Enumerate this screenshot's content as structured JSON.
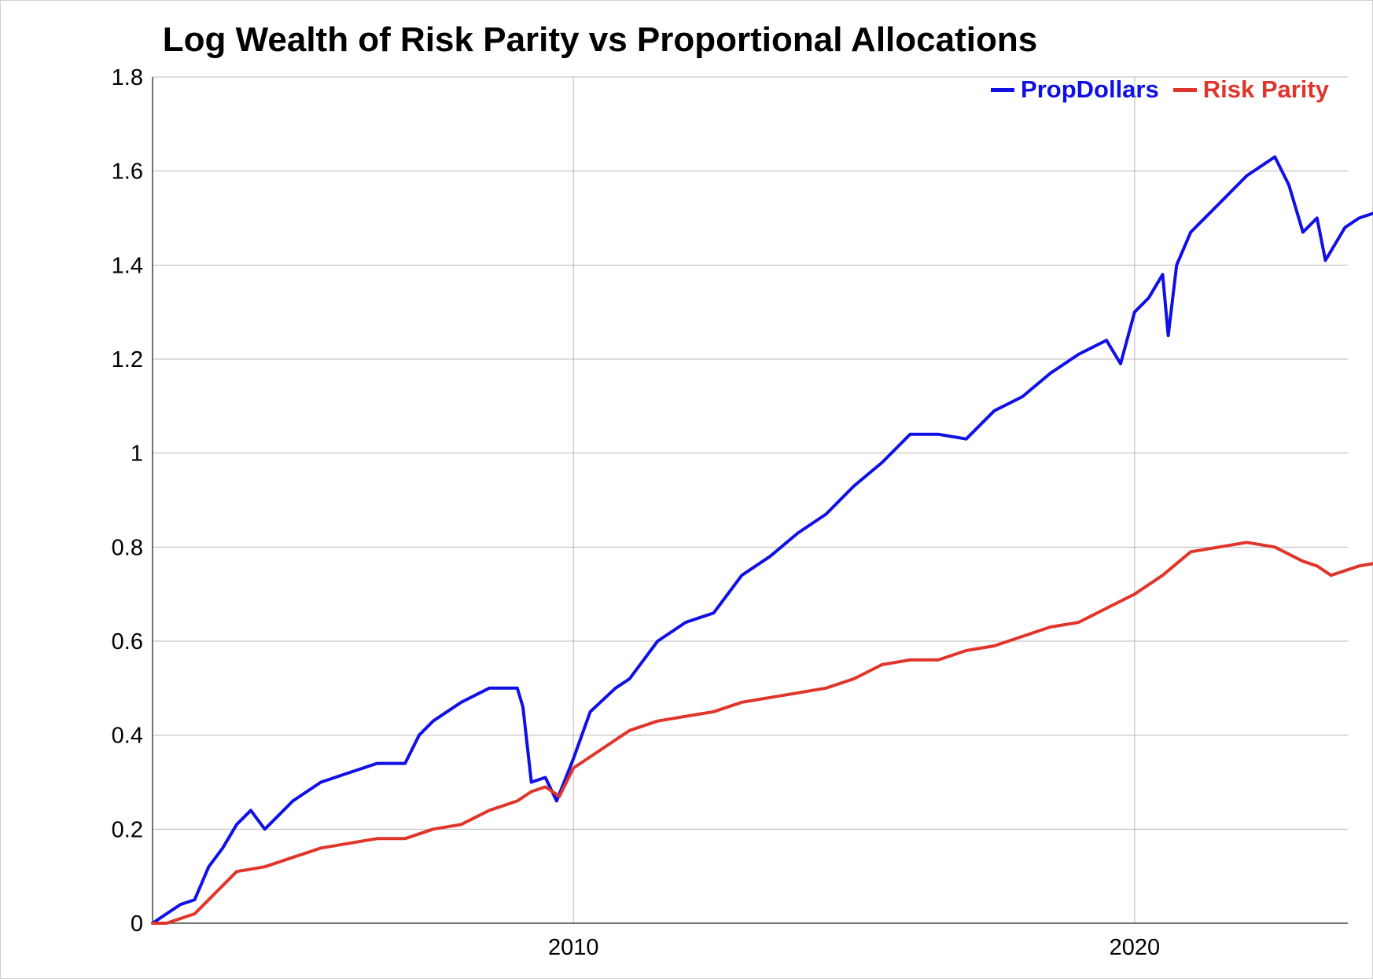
{
  "chart_data": {
    "type": "line",
    "title": "Log Wealth of Risk Parity vs Proportional Allocations",
    "xlabel": "",
    "ylabel": "",
    "xlim": [
      2002.5,
      2023.8
    ],
    "ylim": [
      0,
      1.8
    ],
    "x_ticks": [
      2010,
      2020
    ],
    "x_tick_labels": [
      "2010",
      "2020"
    ],
    "y_ticks": [
      0,
      0.2,
      0.4,
      0.6,
      0.8,
      1.0,
      1.2,
      1.4,
      1.6,
      1.8
    ],
    "y_tick_labels": [
      "0",
      "0.2",
      "0.4",
      "0.6",
      "0.8",
      "1",
      "1.2",
      "1.4",
      "1.6",
      "1.8"
    ],
    "grid": true,
    "legend_position": "top-right",
    "series": [
      {
        "name": "PropDollars",
        "color": "#1010e6",
        "points": [
          [
            2002.5,
            0.0
          ],
          [
            2002.75,
            0.02
          ],
          [
            2003.0,
            0.04
          ],
          [
            2003.25,
            0.05
          ],
          [
            2003.5,
            0.12
          ],
          [
            2003.75,
            0.16
          ],
          [
            2004.0,
            0.21
          ],
          [
            2004.25,
            0.24
          ],
          [
            2004.5,
            0.2
          ],
          [
            2004.75,
            0.23
          ],
          [
            2005.0,
            0.26
          ],
          [
            2005.5,
            0.3
          ],
          [
            2006.0,
            0.32
          ],
          [
            2006.5,
            0.34
          ],
          [
            2007.0,
            0.34
          ],
          [
            2007.25,
            0.4
          ],
          [
            2007.5,
            0.43
          ],
          [
            2008.0,
            0.47
          ],
          [
            2008.5,
            0.5
          ],
          [
            2009.0,
            0.5
          ],
          [
            2009.1,
            0.46
          ],
          [
            2009.25,
            0.3
          ],
          [
            2009.5,
            0.31
          ],
          [
            2009.7,
            0.26
          ],
          [
            2010.0,
            0.35
          ],
          [
            2010.3,
            0.45
          ],
          [
            2010.75,
            0.5
          ],
          [
            2011.0,
            0.52
          ],
          [
            2011.5,
            0.6
          ],
          [
            2012.0,
            0.64
          ],
          [
            2012.5,
            0.66
          ],
          [
            2013.0,
            0.74
          ],
          [
            2013.5,
            0.78
          ],
          [
            2014.0,
            0.83
          ],
          [
            2014.5,
            0.87
          ],
          [
            2015.0,
            0.93
          ],
          [
            2015.5,
            0.98
          ],
          [
            2016.0,
            1.04
          ],
          [
            2016.5,
            1.04
          ],
          [
            2017.0,
            1.03
          ],
          [
            2017.5,
            1.09
          ],
          [
            2018.0,
            1.12
          ],
          [
            2018.5,
            1.17
          ],
          [
            2019.0,
            1.21
          ],
          [
            2019.5,
            1.24
          ],
          [
            2019.75,
            1.19
          ],
          [
            2020.0,
            1.3
          ],
          [
            2020.25,
            1.33
          ],
          [
            2020.5,
            1.38
          ],
          [
            2020.6,
            1.25
          ],
          [
            2020.75,
            1.4
          ],
          [
            2021.0,
            1.47
          ],
          [
            2021.5,
            1.53
          ],
          [
            2022.0,
            1.59
          ],
          [
            2022.5,
            1.63
          ],
          [
            2022.75,
            1.57
          ],
          [
            2023.0,
            1.47
          ],
          [
            2023.25,
            1.5
          ],
          [
            2023.4,
            1.41
          ],
          [
            2023.75,
            1.48
          ],
          [
            2024.0,
            1.5
          ],
          [
            2024.5,
            1.52
          ],
          [
            2024.8,
            1.51
          ]
        ]
      },
      {
        "name": "Risk Parity",
        "color": "#e0352b",
        "points": [
          [
            2002.5,
            0.0
          ],
          [
            2002.75,
            0.0
          ],
          [
            2003.0,
            0.01
          ],
          [
            2003.25,
            0.02
          ],
          [
            2003.5,
            0.05
          ],
          [
            2004.0,
            0.11
          ],
          [
            2004.5,
            0.12
          ],
          [
            2005.0,
            0.14
          ],
          [
            2005.5,
            0.16
          ],
          [
            2006.0,
            0.17
          ],
          [
            2006.5,
            0.18
          ],
          [
            2007.0,
            0.18
          ],
          [
            2007.5,
            0.2
          ],
          [
            2008.0,
            0.21
          ],
          [
            2008.5,
            0.24
          ],
          [
            2009.0,
            0.26
          ],
          [
            2009.25,
            0.28
          ],
          [
            2009.5,
            0.29
          ],
          [
            2009.75,
            0.27
          ],
          [
            2010.0,
            0.33
          ],
          [
            2010.5,
            0.37
          ],
          [
            2011.0,
            0.41
          ],
          [
            2011.5,
            0.43
          ],
          [
            2012.0,
            0.44
          ],
          [
            2012.5,
            0.45
          ],
          [
            2013.0,
            0.47
          ],
          [
            2013.5,
            0.48
          ],
          [
            2014.0,
            0.49
          ],
          [
            2014.5,
            0.5
          ],
          [
            2015.0,
            0.52
          ],
          [
            2015.5,
            0.55
          ],
          [
            2016.0,
            0.56
          ],
          [
            2016.5,
            0.56
          ],
          [
            2017.0,
            0.58
          ],
          [
            2017.5,
            0.59
          ],
          [
            2018.0,
            0.61
          ],
          [
            2018.5,
            0.63
          ],
          [
            2019.0,
            0.64
          ],
          [
            2019.5,
            0.67
          ],
          [
            2020.0,
            0.7
          ],
          [
            2020.5,
            0.74
          ],
          [
            2021.0,
            0.79
          ],
          [
            2021.5,
            0.8
          ],
          [
            2022.0,
            0.81
          ],
          [
            2022.5,
            0.8
          ],
          [
            2023.0,
            0.77
          ],
          [
            2023.25,
            0.76
          ],
          [
            2023.5,
            0.74
          ],
          [
            2023.75,
            0.75
          ],
          [
            2024.0,
            0.76
          ],
          [
            2024.5,
            0.77
          ],
          [
            2024.8,
            0.75
          ]
        ]
      }
    ]
  }
}
